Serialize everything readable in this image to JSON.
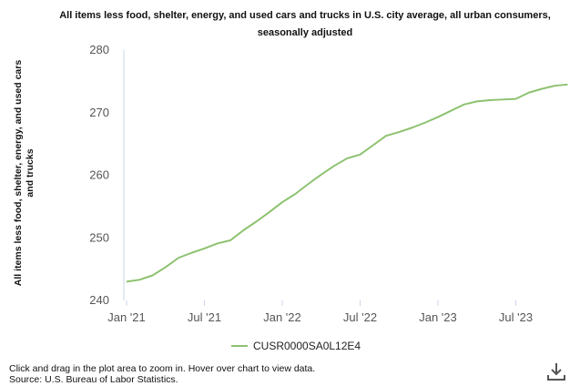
{
  "chart_data": {
    "type": "line",
    "title": "All items less food, shelter, energy, and used cars and trucks in U.S. city average, all urban consumers, seasonally adjusted",
    "ylabel": "All items less food, shelter, energy, and used cars and trucks",
    "xlabel": "",
    "ylim": [
      240,
      280
    ],
    "yticks": [
      240,
      250,
      260,
      270,
      280
    ],
    "xticks": [
      "Jan '21",
      "Jul '21",
      "Jan '22",
      "Jul '22",
      "Jan '23",
      "Jul '23"
    ],
    "grid": false,
    "legend_position": "bottom",
    "series": [
      {
        "name": "CUSR0000SA0L12E4",
        "color": "#8dc26f",
        "x": [
          "2021-01",
          "2021-02",
          "2021-03",
          "2021-04",
          "2021-05",
          "2021-06",
          "2021-07",
          "2021-08",
          "2021-09",
          "2021-10",
          "2021-11",
          "2021-12",
          "2022-01",
          "2022-02",
          "2022-03",
          "2022-04",
          "2022-05",
          "2022-06",
          "2022-07",
          "2022-08",
          "2022-09",
          "2022-10",
          "2022-11",
          "2022-12",
          "2023-01",
          "2023-02",
          "2023-03",
          "2023-04",
          "2023-05",
          "2023-06",
          "2023-07",
          "2023-08",
          "2023-09",
          "2023-10",
          "2023-11"
        ],
        "values": [
          243.0,
          243.3,
          244.0,
          245.3,
          246.8,
          247.6,
          248.3,
          249.1,
          249.6,
          251.2,
          252.6,
          254.1,
          255.7,
          257.0,
          258.6,
          260.1,
          261.5,
          262.7,
          263.3,
          264.8,
          266.3,
          266.9,
          267.6,
          268.4,
          269.3,
          270.3,
          271.3,
          271.8,
          272.0,
          272.1,
          272.2,
          273.2,
          273.8,
          274.3,
          274.5
        ]
      }
    ]
  },
  "footer": {
    "hint": "Click and drag in the plot area to zoom in. Hover over chart to view data.",
    "source": "Source: U.S. Bureau of Labor Statistics."
  },
  "icons": {
    "download": "download-icon"
  }
}
